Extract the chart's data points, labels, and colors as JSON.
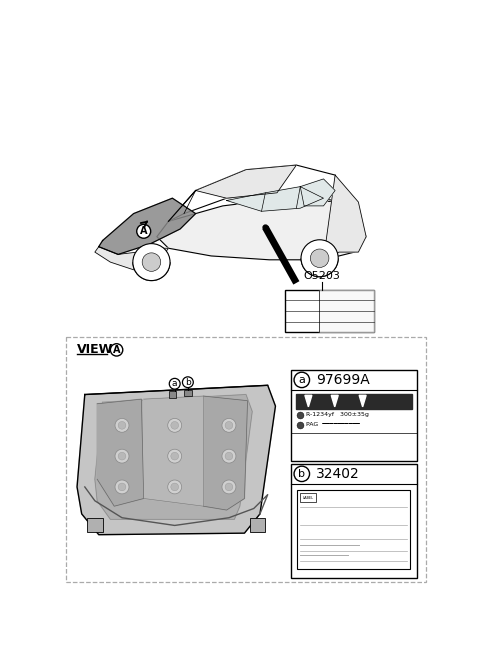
{
  "bg_color": "#ffffff",
  "part_number_top": "O5203",
  "part_number_a": "97699A",
  "part_number_b": "32402",
  "view_label": "VIEW",
  "dashed_border_color": "#aaaaaa",
  "gray_car": "#d0d0d0",
  "gray_hood": "#909090",
  "gray_liner": "#c0c0c0",
  "dark_line": "#000000",
  "medium_gray": "#aaaaaa"
}
